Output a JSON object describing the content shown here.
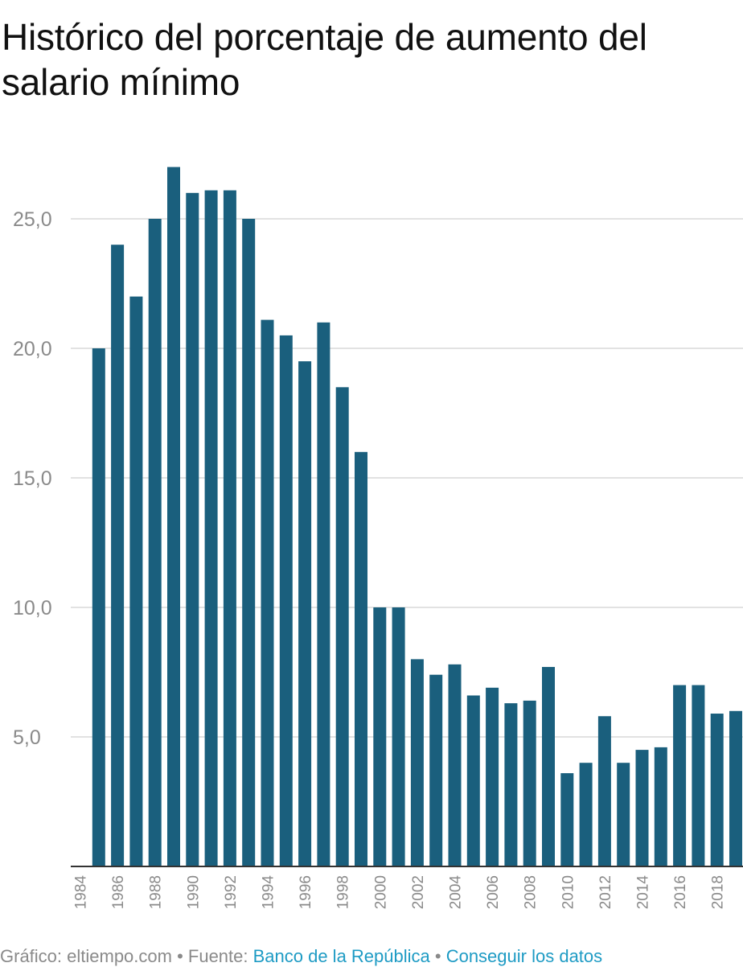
{
  "title": "Histórico del porcentaje de aumento del salario mínimo",
  "colors": {
    "bar": "#1a5f7d",
    "grid": "#d9d9d9",
    "axis": "#333333",
    "tick_label": "#8a8a8a",
    "link": "#1e9bc4"
  },
  "footer": {
    "prefix": "Gráfico: eltiempo.com • Fuente: ",
    "source_link": "Banco de la República",
    "separator": " • ",
    "data_link": "Conseguir los datos"
  },
  "chart_data": {
    "type": "bar",
    "title": "Histórico del porcentaje de aumento del salario mínimo",
    "xlabel": "",
    "ylabel": "",
    "x_tick_labels": [
      "1984",
      "1986",
      "1988",
      "1990",
      "1992",
      "1994",
      "1996",
      "1998",
      "2000",
      "2002",
      "2004",
      "2006",
      "2008",
      "2010",
      "2012",
      "2014",
      "2016",
      "2018"
    ],
    "y_tick_labels": [
      "5,0",
      "10,0",
      "15,0",
      "20,0",
      "25,0"
    ],
    "y_ticks": [
      5,
      10,
      15,
      20,
      25
    ],
    "ylim": [
      0,
      28
    ],
    "xlim": [
      1984,
      2019
    ],
    "grid": true,
    "legend": "none",
    "categories": [
      "1985",
      "1986",
      "1987",
      "1988",
      "1989",
      "1990",
      "1991",
      "1992",
      "1993",
      "1994",
      "1995",
      "1996",
      "1997",
      "1998",
      "1999",
      "2000",
      "2001",
      "2002",
      "2003",
      "2004",
      "2005",
      "2006",
      "2007",
      "2008",
      "2009",
      "2010",
      "2011",
      "2012",
      "2013",
      "2014",
      "2015",
      "2016",
      "2017",
      "2018",
      "2019"
    ],
    "values": [
      20.0,
      24.0,
      22.0,
      25.0,
      27.0,
      26.0,
      26.1,
      26.1,
      25.0,
      21.1,
      20.5,
      19.5,
      21.0,
      18.5,
      16.0,
      10.0,
      10.0,
      8.0,
      7.4,
      7.8,
      6.6,
      6.9,
      6.3,
      6.4,
      7.7,
      3.6,
      4.0,
      5.8,
      4.0,
      4.5,
      4.6,
      7.0,
      7.0,
      5.9,
      6.0
    ]
  }
}
